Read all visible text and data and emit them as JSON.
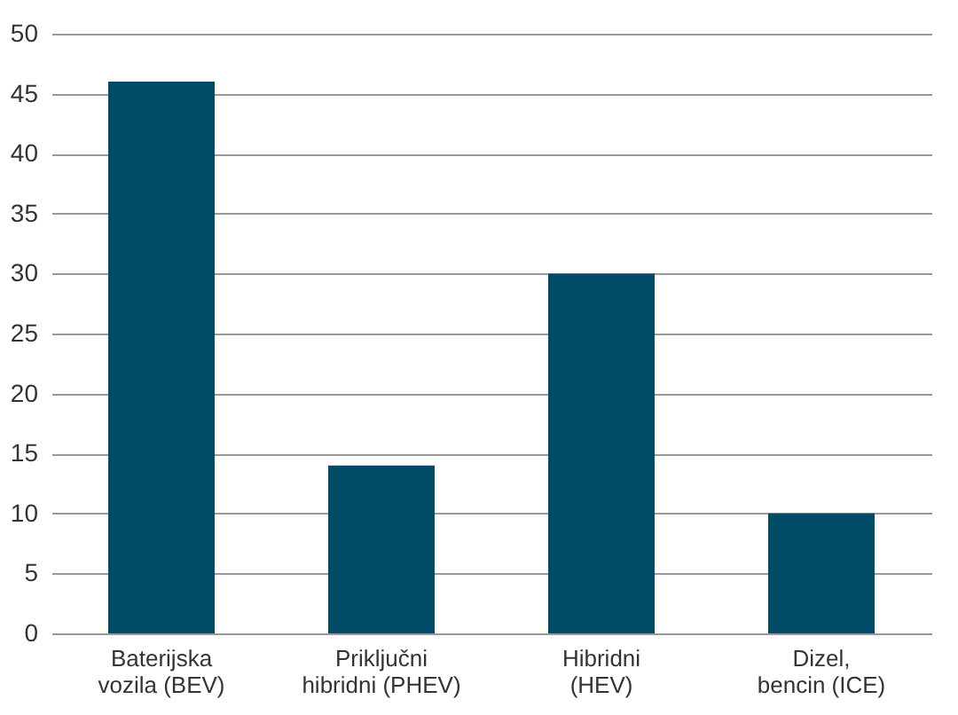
{
  "chart_data": {
    "type": "bar",
    "categories": [
      "Baterijska vozila (BEV)",
      "Priključni hibridni (PHEV)",
      "Hibridni (HEV)",
      "Dizel, bencin (ICE)"
    ],
    "values": [
      46,
      14,
      30,
      10
    ],
    "color": "#004b66",
    "ylim": [
      0,
      50
    ],
    "yticks": [
      0,
      5,
      10,
      15,
      20,
      25,
      30,
      35,
      40,
      45,
      50
    ],
    "grid": "y"
  }
}
